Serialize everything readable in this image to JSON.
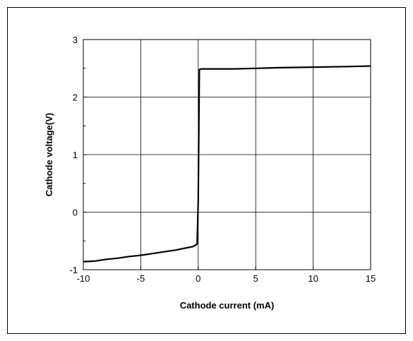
{
  "chart_data": {
    "type": "line",
    "title": "",
    "xlabel": "Cathode current (mA)",
    "ylabel": "Cathode voltage(V)",
    "xlim": [
      -10,
      15
    ],
    "ylim": [
      -1,
      3
    ],
    "x_ticks": [
      -10,
      -5,
      0,
      5,
      10,
      15
    ],
    "y_ticks": [
      -1,
      0,
      1,
      2,
      3
    ],
    "y_minor_step": 0.5,
    "grid": true,
    "legend": "none",
    "series": [
      {
        "color": "#000000",
        "x": [
          -10,
          -9,
          -8,
          -7,
          -6,
          -5,
          -4,
          -3,
          -2,
          -1.5,
          -1,
          -0.5,
          -0.2,
          -0.1,
          0,
          0.1,
          0.3,
          1,
          3,
          5,
          7,
          10,
          13,
          15
        ],
        "y": [
          -0.86,
          -0.85,
          -0.82,
          -0.8,
          -0.77,
          -0.75,
          -0.72,
          -0.69,
          -0.66,
          -0.64,
          -0.62,
          -0.6,
          -0.57,
          -0.55,
          0.2,
          2.48,
          2.49,
          2.49,
          2.49,
          2.5,
          2.51,
          2.52,
          2.53,
          2.54
        ]
      }
    ]
  }
}
